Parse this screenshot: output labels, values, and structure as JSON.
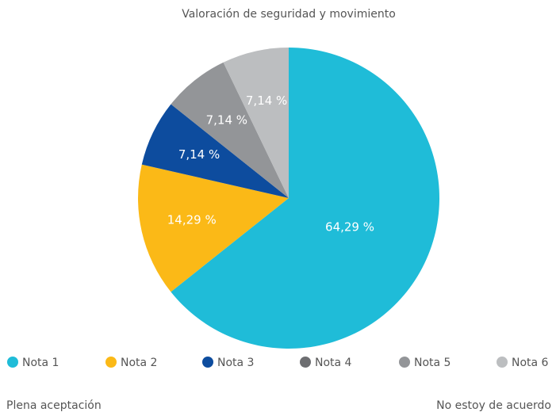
{
  "chart_data": {
    "type": "pie",
    "title": "Valoración de seguridad y movimiento",
    "categories": [
      "Nota 1",
      "Nota 2",
      "Nota 3",
      "Nota 4",
      "Nota 5",
      "Nota 6"
    ],
    "values": [
      64.29,
      14.29,
      7.14,
      0,
      7.14,
      7.14
    ],
    "value_labels": [
      "64,29 %",
      "14,29 %",
      "7,14 %",
      null,
      "7,14 %",
      "7,14 %"
    ],
    "colors": [
      "#1fbcd8",
      "#fbb917",
      "#0d4c9e",
      "#6d6e71",
      "#939598",
      "#bcbec0"
    ],
    "legend": "bottom",
    "annotations": [
      "Plena aceptación",
      "No estoy de acuerdo"
    ]
  }
}
